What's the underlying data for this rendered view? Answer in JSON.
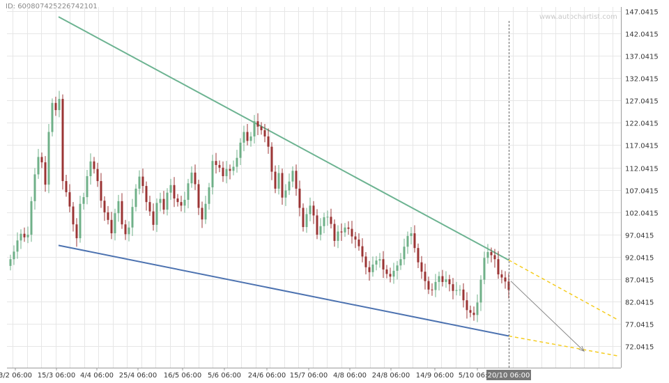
{
  "header": {
    "chart_id": "ID: 600807425226742101",
    "watermark": "www.autochartist.com"
  },
  "chart_data": {
    "type": "candlestick",
    "title": "",
    "xlabel": "",
    "ylabel": "",
    "ylim": [
      67.2,
      148.0
    ],
    "y_ticks": [
      "147.0415",
      "142.0415",
      "137.0415",
      "132.0415",
      "127.0415",
      "122.0415",
      "117.0415",
      "112.0415",
      "107.0415",
      "102.0415",
      "97.0415",
      "92.0415",
      "87.0415",
      "82.0415",
      "77.0415",
      "72.0415"
    ],
    "x_ticks": [
      "3/2 06:00",
      "15/3 06:00",
      "4/4 06:00",
      "25/4 06:00",
      "16/5 06:00",
      "5/6 06:00",
      "24/6 06:00",
      "15/7 06:00",
      "4/8 06:00",
      "24/8 06:00",
      "14/9 06:00",
      "5/10 06:00"
    ],
    "cursor_label": "20/10 06:00",
    "grid": true,
    "colors": {
      "up": "#6fb088",
      "down": "#9b3434",
      "upper_trendline": "#6cb391",
      "lower_trendline": "#4c72b0",
      "projection": "#f5cc1e",
      "forecast_arrow": "#888888",
      "grid": "#e6e6e6",
      "cursor": "#666666"
    },
    "pattern": {
      "type": "falling wedge",
      "upper_trendline": [
        {
          "x": "15/3",
          "y": 145.8
        },
        {
          "x": "20/10",
          "y": 91.3
        }
      ],
      "lower_trendline": [
        {
          "x": "15/3",
          "y": 94.6
        },
        {
          "x": "20/10",
          "y": 74.3
        }
      ],
      "upper_projection": {
        "y_end": 77.8
      },
      "lower_projection": {
        "y_end": 69.8
      },
      "forecast_target": 70.9
    },
    "series_close": [
      91.5,
      93.2,
      95.7,
      97.2,
      96.4,
      97.0,
      104.5,
      110.5,
      114.4,
      113.2,
      108.2,
      120.0,
      126.5,
      124.9,
      127.4,
      109.0,
      106.5,
      103.3,
      99.3,
      96.2,
      103.9,
      105.4,
      110.1,
      113.4,
      111.7,
      109.0,
      104.6,
      102.0,
      100.3,
      97.3,
      101.8,
      104.5,
      99.3,
      97.1,
      98.6,
      103.2,
      107.3,
      110.0,
      107.9,
      104.3,
      102.2,
      99.2,
      104.1,
      105.0,
      102.6,
      106.4,
      108.1,
      105.1,
      104.3,
      103.5,
      104.8,
      108.5,
      110.9,
      108.3,
      103.0,
      100.4,
      103.9,
      107.6,
      113.5,
      112.6,
      112.0,
      110.1,
      111.7,
      111.3,
      112.2,
      114.2,
      117.6,
      120.0,
      118.0,
      119.0,
      122.4,
      121.2,
      120.4,
      119.0,
      116.7,
      111.1,
      107.3,
      110.8,
      105.3,
      106.9,
      108.9,
      111.3,
      107.3,
      103.0,
      98.7,
      101.6,
      103.5,
      101.3,
      97.0,
      98.9,
      100.9,
      101.0,
      99.4,
      95.6,
      97.7,
      97.5,
      98.6,
      98.3,
      96.6,
      95.9,
      94.4,
      92.1,
      89.7,
      88.6,
      90.3,
      91.2,
      91.5,
      89.2,
      88.2,
      87.6,
      88.9,
      90.1,
      91.5,
      94.3,
      96.7,
      97.3,
      94.0,
      90.8,
      88.7,
      86.6,
      84.7,
      84.6,
      86.4,
      87.7,
      86.4,
      87.0,
      85.9,
      84.4,
      84.6,
      84.7,
      82.3,
      80.1,
      79.5,
      79.0,
      81.8,
      86.9,
      91.8,
      93.1,
      92.4,
      91.5,
      88.1,
      87.4,
      86.5,
      84.6
    ]
  }
}
